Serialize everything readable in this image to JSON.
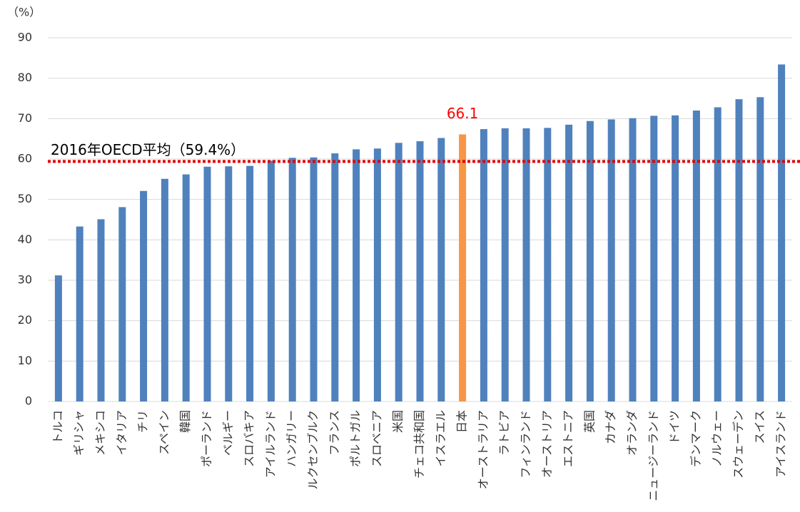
{
  "chart_data": {
    "type": "bar",
    "unit_label": "（%）",
    "categories": [
      "トルコ",
      "ギリシャ",
      "メキシコ",
      "イタリア",
      "チリ",
      "スペイン",
      "韓国",
      "ポーランド",
      "ベルギー",
      "スロバキア",
      "アイルランド",
      "ハンガリー",
      "ルクセンブルク",
      "フランス",
      "ポルトガル",
      "スロベニア",
      "米国",
      "チェコ共和国",
      "イスラエル",
      "日本",
      "オーストラリア",
      "ラトビア",
      "フィンランド",
      "オーストリア",
      "エストニア",
      "英国",
      "カナダ",
      "オランダ",
      "ニュージーランド",
      "ドイツ",
      "デンマーク",
      "ノルウェー",
      "スウェーデン",
      "スイス",
      "アイスランド"
    ],
    "values": [
      31.2,
      43.3,
      45.1,
      48.1,
      52.1,
      55.1,
      56.2,
      58.1,
      58.2,
      58.3,
      59.6,
      60.3,
      60.4,
      61.4,
      62.4,
      62.6,
      64.0,
      64.4,
      65.2,
      66.1,
      67.4,
      67.6,
      67.6,
      67.7,
      68.5,
      69.4,
      69.8,
      70.1,
      70.7,
      70.8,
      72.0,
      72.8,
      74.8,
      75.3,
      83.4
    ],
    "colors": [
      "#4f81bd",
      "#4f81bd",
      "#4f81bd",
      "#4f81bd",
      "#4f81bd",
      "#4f81bd",
      "#4f81bd",
      "#4f81bd",
      "#4f81bd",
      "#4f81bd",
      "#4f81bd",
      "#4f81bd",
      "#4f81bd",
      "#4f81bd",
      "#4f81bd",
      "#4f81bd",
      "#4f81bd",
      "#4f81bd",
      "#4f81bd",
      "#f79646",
      "#4f81bd",
      "#4f81bd",
      "#4f81bd",
      "#4f81bd",
      "#4f81bd",
      "#4f81bd",
      "#4f81bd",
      "#4f81bd",
      "#4f81bd",
      "#4f81bd",
      "#4f81bd",
      "#4f81bd",
      "#4f81bd",
      "#4f81bd",
      "#4f81bd"
    ],
    "value_labels": [
      null,
      null,
      null,
      null,
      null,
      null,
      null,
      null,
      null,
      null,
      null,
      null,
      null,
      null,
      null,
      null,
      null,
      null,
      null,
      "66.1",
      null,
      null,
      null,
      null,
      null,
      null,
      null,
      null,
      null,
      null,
      null,
      null,
      null,
      null,
      null
    ],
    "value_label_color": "#ff0000",
    "reference_line": {
      "value": 59.4,
      "label": "2016年OECD平均（59.4%）",
      "color": "#e00000"
    },
    "ylim": [
      0,
      90
    ],
    "yticks": [
      0,
      10,
      20,
      30,
      40,
      50,
      60,
      70,
      80,
      90
    ],
    "grid": true
  }
}
